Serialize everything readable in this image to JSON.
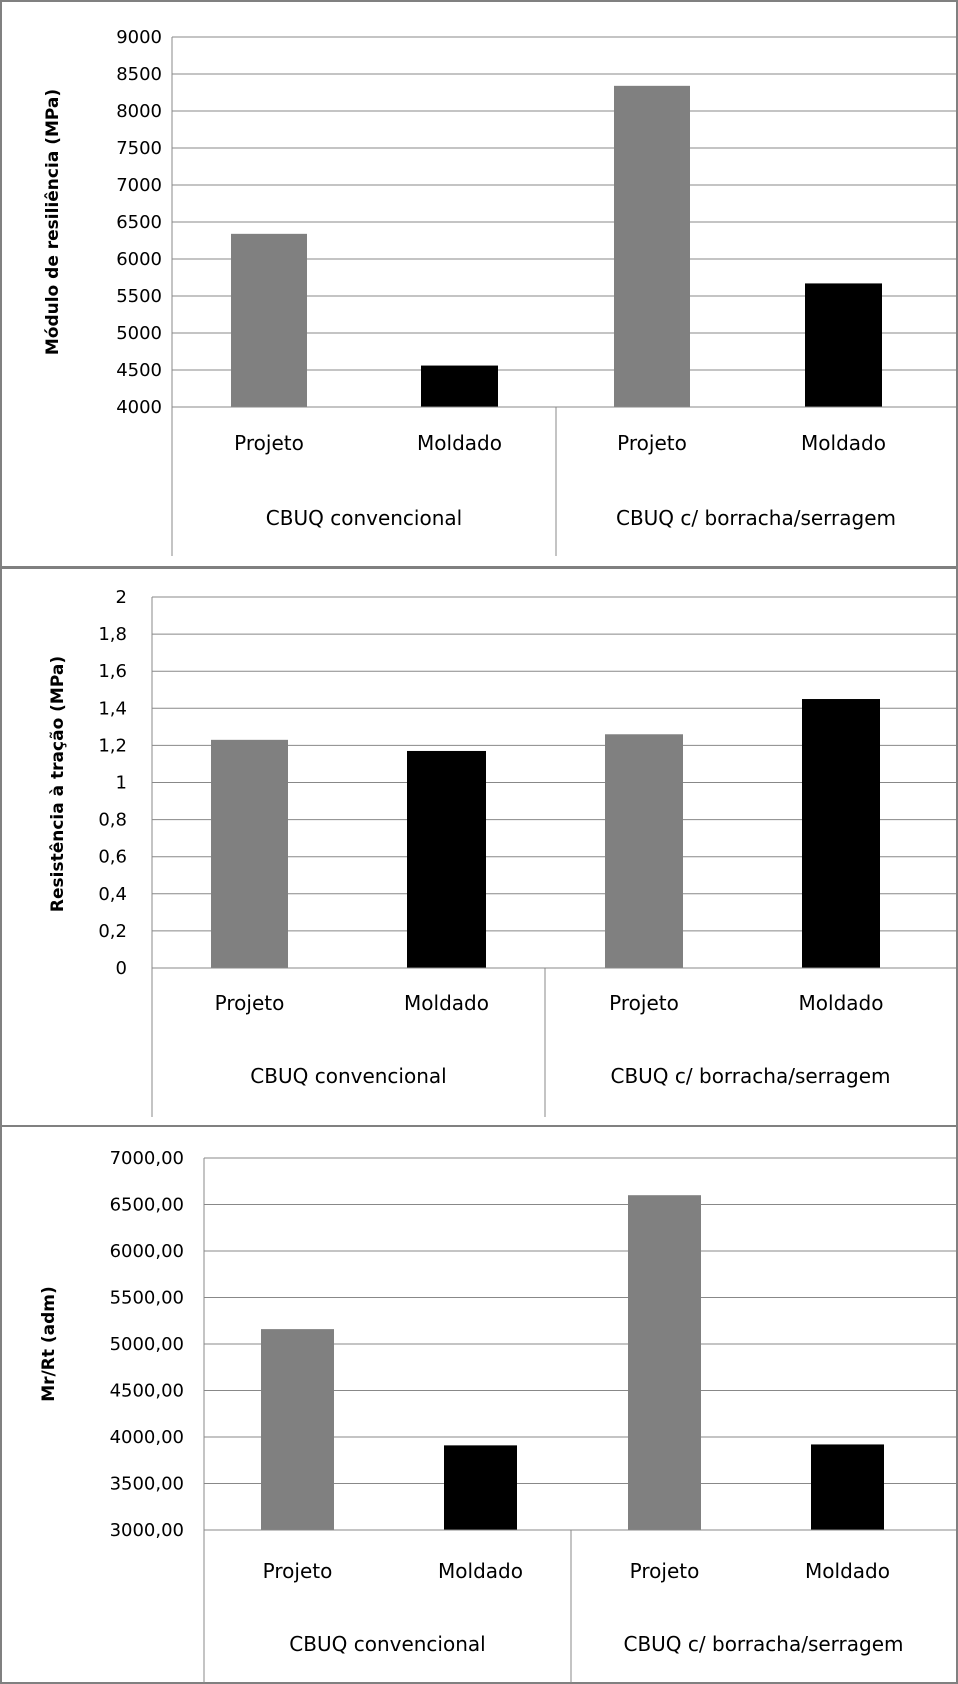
{
  "chart_data": [
    {
      "type": "bar",
      "ylabel": "Módulo de resiliência (MPa)",
      "ylim": [
        4000,
        9000
      ],
      "y_ticks": [
        "4000",
        "4500",
        "5000",
        "5500",
        "6000",
        "6500",
        "7000",
        "7500",
        "8000",
        "8500",
        "9000"
      ],
      "grid": true,
      "groups": [
        "CBUQ convencional",
        "CBUQ c/ borracha/serragem"
      ],
      "categories": [
        "Projeto",
        "Moldado",
        "Projeto",
        "Moldado"
      ],
      "values": [
        6340,
        4560,
        8340,
        5670
      ],
      "bar_colors": [
        "#808080",
        "#000000",
        "#808080",
        "#000000"
      ]
    },
    {
      "type": "bar",
      "ylabel": "Resistência à tração (MPa)",
      "ylim": [
        0,
        2
      ],
      "y_ticks": [
        "0",
        "0,2",
        "0,4",
        "0,6",
        "0,8",
        "1",
        "1,2",
        "1,4",
        "1,6",
        "1,8",
        "2"
      ],
      "grid": true,
      "groups": [
        "CBUQ convencional",
        "CBUQ c/ borracha/serragem"
      ],
      "categories": [
        "Projeto",
        "Moldado",
        "Projeto",
        "Moldado"
      ],
      "values": [
        1.23,
        1.17,
        1.26,
        1.45
      ],
      "bar_colors": [
        "#808080",
        "#000000",
        "#808080",
        "#000000"
      ]
    },
    {
      "type": "bar",
      "ylabel": "Mr/Rt (adm)",
      "ylim": [
        3000,
        7000
      ],
      "y_ticks": [
        "3000,00",
        "3500,00",
        "4000,00",
        "4500,00",
        "5000,00",
        "5500,00",
        "6000,00",
        "6500,00",
        "7000,00"
      ],
      "grid": true,
      "groups": [
        "CBUQ convencional",
        "CBUQ c/ borracha/serragem"
      ],
      "categories": [
        "Projeto",
        "Moldado",
        "Projeto",
        "Moldado"
      ],
      "values": [
        5160,
        3910,
        6600,
        3920
      ],
      "bar_colors": [
        "#808080",
        "#000000",
        "#808080",
        "#000000"
      ]
    }
  ],
  "colors": {
    "background": "#ffffff",
    "frame": "#808080",
    "grid": "#888888",
    "projeto": "#808080",
    "moldado": "#000000"
  }
}
